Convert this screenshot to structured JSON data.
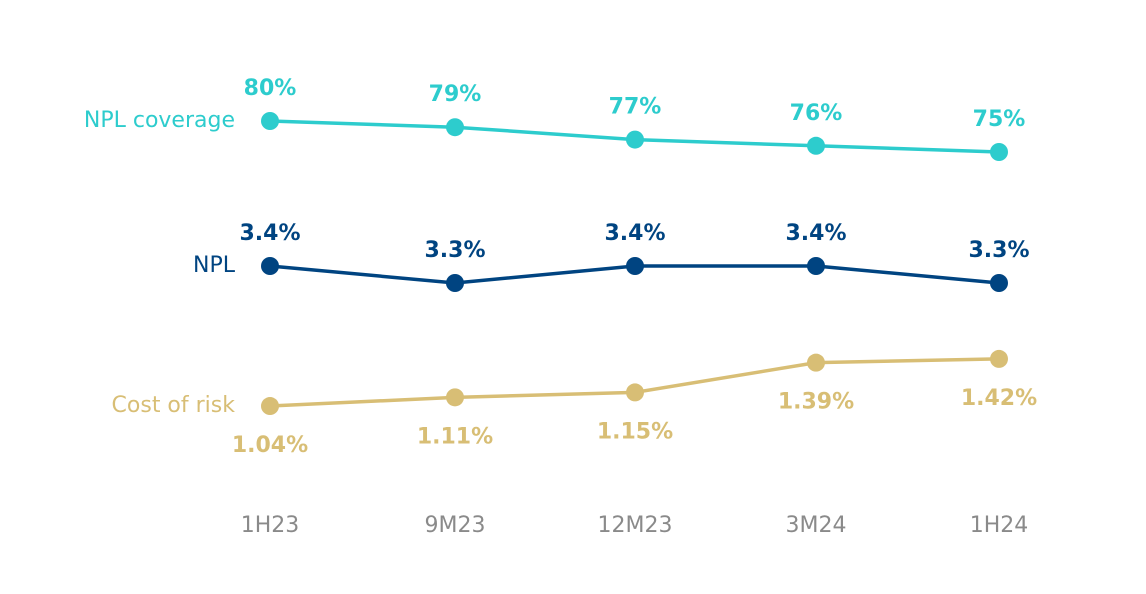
{
  "chart_data": {
    "type": "line",
    "categories": [
      "1H23",
      "9M23",
      "12M23",
      "3M24",
      "1H24"
    ],
    "series": [
      {
        "name": "NPL coverage",
        "color": "#2dcccd",
        "values": [
          80,
          79,
          77,
          76,
          75
        ],
        "value_labels": [
          "80%",
          "79%",
          "77%",
          "76%",
          "75%"
        ],
        "ylim": [
          70,
          85
        ]
      },
      {
        "name": "NPL",
        "color": "#004481",
        "values": [
          3.4,
          3.3,
          3.4,
          3.4,
          3.3
        ],
        "value_labels": [
          "3.4%",
          "3.3%",
          "3.4%",
          "3.4%",
          "3.3%"
        ],
        "ylim": [
          3.2,
          3.5
        ]
      },
      {
        "name": "Cost of risk",
        "color": "#d8be75",
        "values": [
          1.04,
          1.11,
          1.15,
          1.39,
          1.42
        ],
        "value_labels": [
          "1.04%",
          "1.11%",
          "1.15%",
          "1.39%",
          "1.42%"
        ],
        "ylim": [
          1.0,
          1.5
        ]
      }
    ]
  }
}
